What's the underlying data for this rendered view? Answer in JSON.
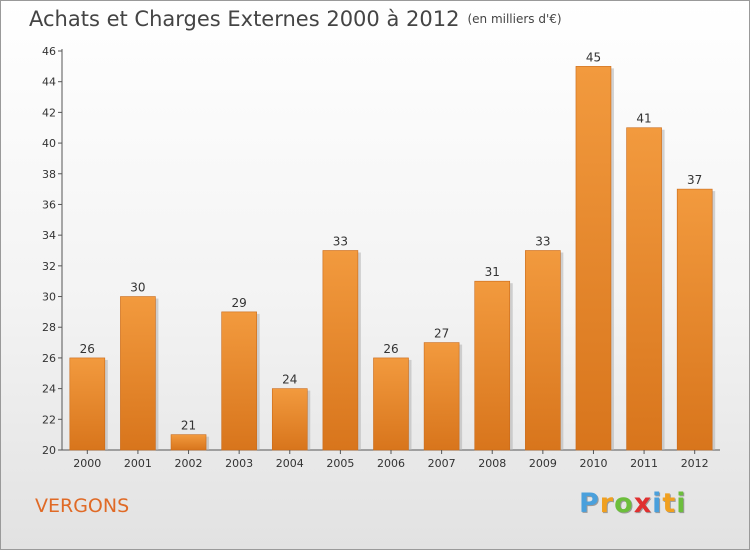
{
  "chart_data": {
    "type": "bar",
    "title": "Achats et Charges Externes 2000 à 2012",
    "unit_label": "(en milliers d'€)",
    "categories": [
      "2000",
      "2001",
      "2002",
      "2003",
      "2004",
      "2005",
      "2006",
      "2007",
      "2008",
      "2009",
      "2010",
      "2011",
      "2012"
    ],
    "values": [
      26,
      30,
      21,
      29,
      24,
      33,
      26,
      27,
      31,
      33,
      45,
      41,
      37
    ],
    "ylim": [
      20,
      46
    ],
    "yticks": [
      20,
      22,
      24,
      26,
      28,
      30,
      32,
      34,
      36,
      38,
      40,
      42,
      44,
      46
    ],
    "grid": false,
    "bar_color": "#f29a3e",
    "bar_color_dark": "#d8751c"
  },
  "commune": "VERGONS",
  "logo": {
    "letters": [
      "P",
      "r",
      "o",
      "x",
      "i",
      "t",
      "i"
    ],
    "colors": [
      "#4aa0dc",
      "#f0a020",
      "#6cbe3c",
      "#e03030",
      "#4aa0dc",
      "#f0a020",
      "#6cbe3c"
    ]
  }
}
